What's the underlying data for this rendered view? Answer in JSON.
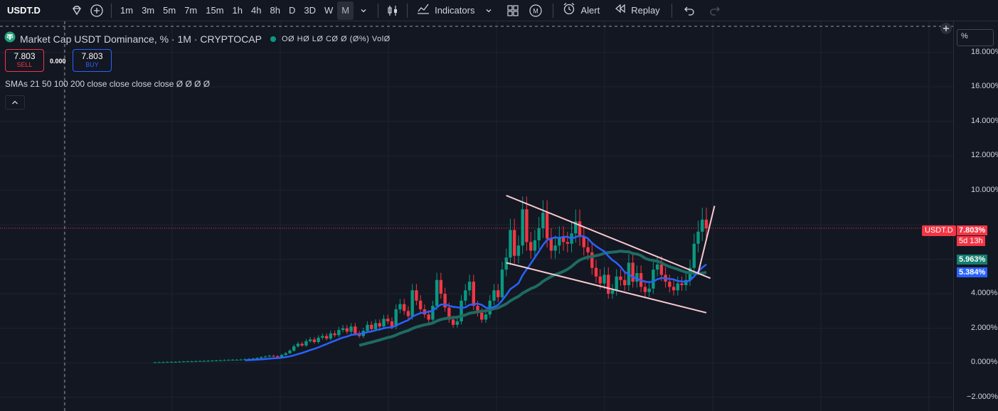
{
  "toolbar": {
    "symbol": "USDT.D",
    "intervals": [
      "1m",
      "3m",
      "5m",
      "7m",
      "15m",
      "1h",
      "4h",
      "8h",
      "D",
      "3D",
      "W",
      "M"
    ],
    "active_interval": "M",
    "indicators_label": "Indicators",
    "alert_label": "Alert",
    "replay_label": "Replay",
    "icons": [
      "diamond-icon",
      "add-symbol-icon",
      "chevron-down-icon",
      "candles-icon",
      "indicators-icon",
      "layout-grid-icon",
      "m-circle-icon",
      "alarm-icon",
      "replay-icon",
      "undo-icon",
      "redo-icon"
    ]
  },
  "legend": {
    "title": "Market Cap USDT Dominance, % · 1M · CRYPTOCAP",
    "ohlc": "OØ HØ LØ CØ Ø (Ø%) VolØ",
    "sell_price": "7.803",
    "sell_label": "SELL",
    "buy_price": "7.803",
    "buy_label": "BUY",
    "spread": "0.000",
    "sma": "SMAs 21 50 100 200 close close close close  Ø  Ø  Ø  Ø"
  },
  "price_axis": {
    "mode": "%",
    "ticks": [
      "18.000%",
      "16.000%",
      "14.000%",
      "12.000%",
      "10.000%",
      "4.000%",
      "2.000%",
      "0.000%",
      "−2.000%"
    ],
    "current_symbol": "USDT.D",
    "current_price": "7.803%",
    "countdown": "5d 13h",
    "sma_green_value": "5.963%",
    "sma_blue_value": "5.384%",
    "colors": {
      "up": "#089981",
      "down": "#f23645",
      "sma_blue": "#2962ff",
      "sma_green": "#1e6b62",
      "trendline": "#f7c9cf"
    }
  },
  "chart_data": {
    "type": "candlestick",
    "symbol": "USDT.D",
    "interval": "1M",
    "ylim": [
      -2.8,
      19.8
    ],
    "monthly_closes_pct": [
      0.02,
      0.03,
      0.03,
      0.04,
      0.05,
      0.05,
      0.06,
      0.07,
      0.08,
      0.08,
      0.09,
      0.1,
      0.1,
      0.11,
      0.12,
      0.13,
      0.14,
      0.15,
      0.16,
      0.17,
      0.17,
      0.18,
      0.2,
      0.22,
      0.24,
      0.27,
      0.32,
      0.36,
      0.4,
      0.38,
      0.33,
      0.45,
      0.55,
      0.7,
      0.95,
      1.1,
      1.0,
      1.25,
      1.35,
      1.2,
      1.45,
      1.55,
      1.4,
      1.7,
      1.6,
      1.9,
      2.0,
      1.8,
      2.1,
      1.7,
      1.55,
      1.85,
      2.2,
      1.95,
      2.3,
      2.1,
      2.55,
      2.4,
      2.1,
      3.1,
      3.4,
      3.0,
      2.7,
      4.2,
      3.6,
      3.1,
      2.8,
      2.5,
      3.3,
      4.8,
      4.0,
      3.2,
      2.5,
      2.2,
      2.4,
      3.6,
      4.2,
      4.7,
      3.3,
      2.9,
      2.5,
      2.8,
      3.6,
      4.2,
      3.8,
      5.4,
      6.1,
      7.7,
      6.2,
      6.8,
      8.9,
      7.0,
      6.5,
      7.1,
      7.8,
      8.7,
      7.2,
      6.5,
      6.8,
      7.3,
      7.0,
      6.9,
      7.5,
      8.2,
      7.3,
      6.7,
      6.4,
      5.5,
      5.0,
      4.6,
      5.1,
      4.0,
      4.2,
      5.0,
      4.8,
      4.5,
      5.8,
      4.7,
      5.2,
      4.4,
      4.1,
      4.3,
      5.4,
      5.7,
      5.1,
      4.7,
      4.4,
      4.2,
      4.6,
      4.5,
      4.8,
      5.5,
      6.9,
      7.6,
      8.3,
      7.8
    ],
    "sma_blue_last": 5.384,
    "sma_green_last": 5.963,
    "last_price": 7.803
  }
}
